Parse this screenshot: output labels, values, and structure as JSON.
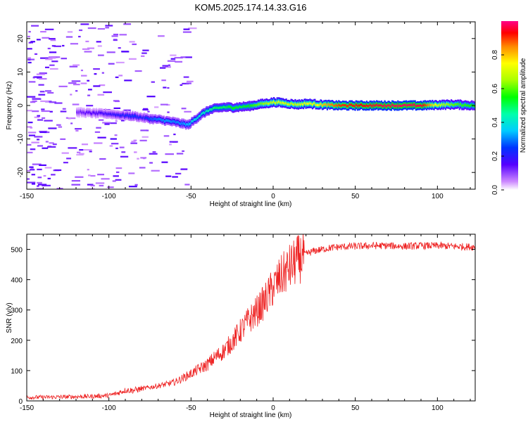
{
  "title": "KOM5.2025.174.14.33.G16",
  "chart_data": [
    {
      "type": "heatmap",
      "xlabel": "Height of straight line (km)",
      "ylabel": "Frequency (Hz)",
      "xlim": [
        -150,
        123
      ],
      "ylim": [
        -25,
        25
      ],
      "xticks": [
        -150,
        -100,
        -50,
        0,
        50,
        100
      ],
      "xtick_labels": [
        "-150",
        "-100",
        "-50",
        "0",
        "50",
        "100"
      ],
      "yticks": [
        -20,
        -10,
        0,
        10,
        20
      ],
      "ytick_labels": [
        "-20",
        "-10",
        "0",
        "10",
        "20"
      ],
      "colorbar": {
        "label": "Normalized spectral amplitude",
        "range": [
          0,
          1
        ],
        "ticks": [
          0.0,
          0.2,
          0.4,
          0.6,
          0.8
        ],
        "tick_labels": [
          "0.0",
          "0.2",
          "0.4",
          "0.6",
          "0.8"
        ],
        "colormap": "rainbow"
      },
      "ridge": {
        "x": [
          -120,
          -110,
          -100,
          -95,
          -90,
          -85,
          -80,
          -75,
          -70,
          -65,
          -60,
          -55,
          -52,
          -50,
          -45,
          -40,
          -35,
          -30,
          -25,
          -20,
          -15,
          -10,
          -5,
          0,
          5,
          10,
          15,
          20,
          25,
          30,
          40,
          50,
          60,
          70,
          80,
          90,
          100,
          110,
          122
        ],
        "freq_hz": [
          -2,
          -2.3,
          -2.5,
          -2.8,
          -3,
          -3.2,
          -3.6,
          -4,
          -4.2,
          -4.6,
          -5,
          -5.5,
          -5.8,
          -5,
          -3,
          -1.5,
          -0.8,
          -0.5,
          -0.6,
          -0.4,
          -0.2,
          0.3,
          0.6,
          1,
          0.8,
          0.5,
          0.3,
          0.6,
          0.4,
          0.2,
          0,
          0,
          0,
          0,
          0,
          0,
          0.2,
          0.3,
          0
        ],
        "amplitude": [
          0.12,
          0.15,
          0.18,
          0.2,
          0.22,
          0.25,
          0.2,
          0.28,
          0.3,
          0.32,
          0.3,
          0.32,
          0.35,
          0.38,
          0.4,
          0.45,
          0.5,
          0.5,
          0.55,
          0.52,
          0.55,
          0.6,
          0.65,
          0.7,
          0.72,
          0.68,
          0.7,
          0.75,
          0.72,
          0.8,
          0.9,
          0.92,
          0.95,
          0.97,
          0.98,
          0.96,
          0.7,
          0.6,
          0.55
        ]
      }
    },
    {
      "type": "line",
      "xlabel": "Height of straight line (km)",
      "ylabel": "SNR (v/v)",
      "xlim": [
        -150,
        123
      ],
      "ylim": [
        0,
        550
      ],
      "xticks": [
        -150,
        -100,
        -50,
        0,
        50,
        100
      ],
      "xtick_labels": [
        "-150",
        "-100",
        "-50",
        "0",
        "50",
        "100"
      ],
      "yticks": [
        0,
        100,
        200,
        300,
        400,
        500
      ],
      "ytick_labels": [
        "0",
        "100",
        "200",
        "300",
        "400",
        "500"
      ],
      "line_color": "#ee2222",
      "series": [
        {
          "x": [
            -150,
            -140,
            -130,
            -120,
            -110,
            -100,
            -95,
            -90,
            -85,
            -80,
            -75,
            -70,
            -65,
            -60,
            -55,
            -50,
            -45,
            -40,
            -35,
            -30,
            -25,
            -20,
            -15,
            -10,
            -5,
            0,
            5,
            10,
            15,
            20,
            25,
            30,
            35,
            40,
            50,
            60,
            70,
            80,
            90,
            100,
            110,
            122
          ],
          "y": [
            12,
            12,
            13,
            14,
            15,
            18,
            25,
            35,
            35,
            40,
            45,
            50,
            55,
            62,
            75,
            90,
            105,
            120,
            145,
            165,
            195,
            230,
            265,
            295,
            330,
            375,
            410,
            440,
            465,
            485,
            495,
            500,
            505,
            508,
            510,
            512,
            512,
            510,
            512,
            512,
            510,
            508
          ]
        }
      ]
    }
  ]
}
